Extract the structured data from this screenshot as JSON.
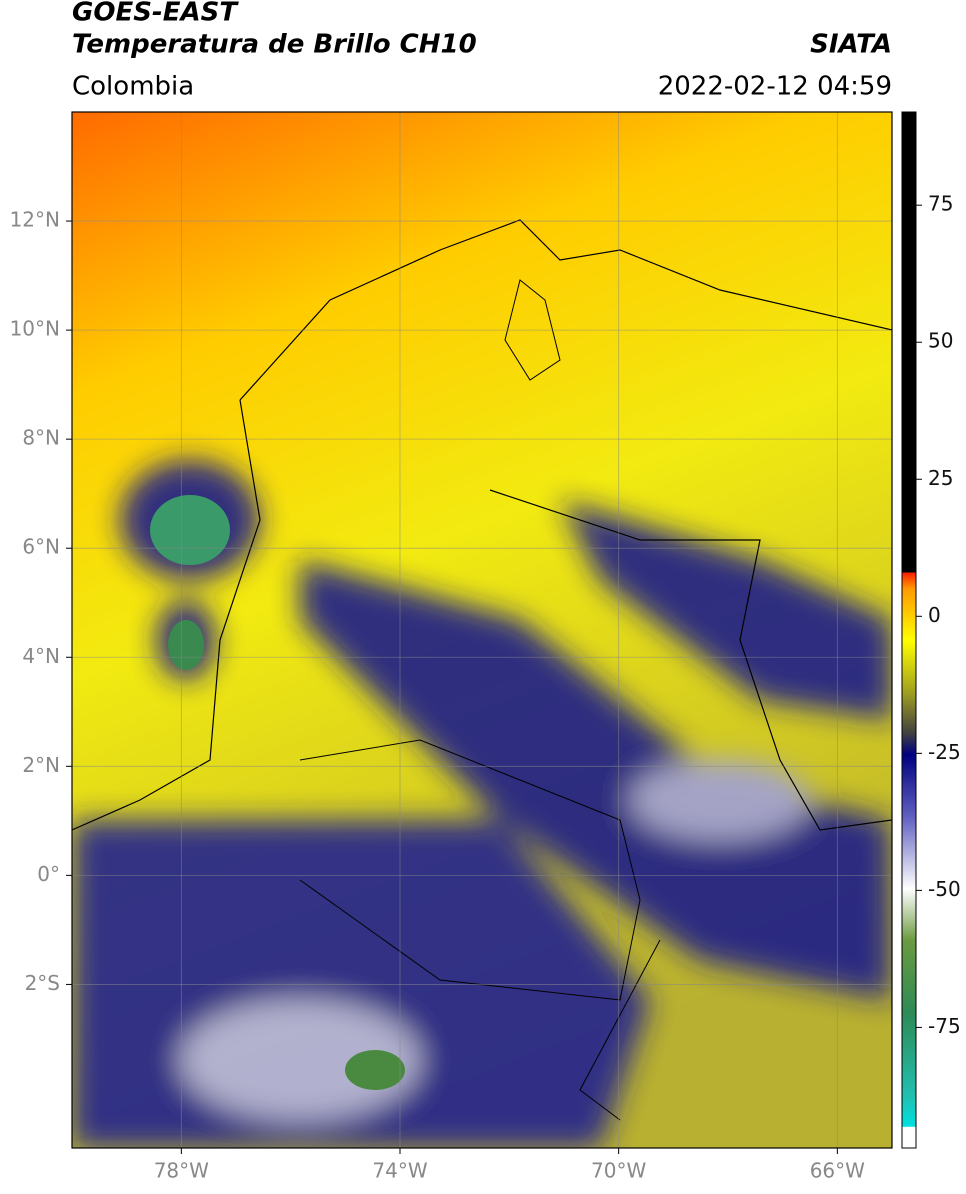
{
  "header": {
    "title": "GOES-EAST",
    "subtitle": "Temperatura de Brillo CH10",
    "source": "SIATA",
    "region": "Colombia",
    "datetime": "2022-02-12 04:59"
  },
  "map": {
    "xlim": [
      -80,
      -65
    ],
    "ylim": [
      -5,
      14
    ],
    "xticks": [
      {
        "value": -78,
        "label": "78°W"
      },
      {
        "value": -74,
        "label": "74°W"
      },
      {
        "value": -70,
        "label": "70°W"
      },
      {
        "value": -66,
        "label": "66°W"
      }
    ],
    "yticks": [
      {
        "value": -2,
        "label": "2°S"
      },
      {
        "value": 0,
        "label": "0°"
      },
      {
        "value": 2,
        "label": "2°N"
      },
      {
        "value": 4,
        "label": "4°N"
      },
      {
        "value": 6,
        "label": "6°N"
      },
      {
        "value": 8,
        "label": "8°N"
      },
      {
        "value": 10,
        "label": "10°N"
      },
      {
        "value": 12,
        "label": "12°N"
      }
    ],
    "grid": true
  },
  "colorbar": {
    "lim": [
      -97,
      92
    ],
    "ticks": [
      -75,
      -50,
      -25,
      0,
      25,
      50,
      75
    ]
  }
}
